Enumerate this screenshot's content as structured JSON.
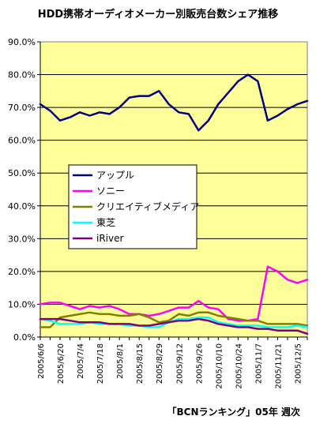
{
  "chart_data": {
    "type": "line",
    "title": "HDD携帯オーディオメーカー別販売台数シェア推移",
    "source": "「BCNランキング」05年 週次",
    "ylim": [
      0,
      90
    ],
    "yticks": [
      0,
      10,
      20,
      30,
      40,
      50,
      60,
      70,
      80,
      90
    ],
    "ytick_labels": [
      "0.0%",
      "10.0%",
      "20.0%",
      "30.0%",
      "40.0%",
      "50.0%",
      "60.0%",
      "70.0%",
      "80.0%",
      "90.0%"
    ],
    "grid": "horizontal",
    "plot_background": "#ffff99",
    "legend_position": "center-left",
    "x": [
      "2005/6/6",
      "2005/6/13",
      "2005/6/20",
      "2005/6/27",
      "2005/7/4",
      "2005/7/11",
      "2005/7/18",
      "2005/7/25",
      "2005/8/1",
      "2005/8/8",
      "2005/8/15",
      "2005/8/22",
      "2005/8/29",
      "2005/9/5",
      "2005/9/12",
      "2005/9/19",
      "2005/9/26",
      "2005/10/3",
      "2005/10/10",
      "2005/10/17",
      "2005/10/24",
      "2005/10/31",
      "2005/11/7",
      "2005/11/14",
      "2005/11/21",
      "2005/11/28",
      "2005/12/5",
      "2005/12/12"
    ],
    "x_tick_labels": [
      "2005/6/6",
      "2005/6/20",
      "2005/7/4",
      "2005/7/18",
      "2005/8/1",
      "2005/8/15",
      "2005/8/29",
      "2005/9/12",
      "2005/9/26",
      "2005/10/10",
      "2005/10/24",
      "2005/11/7",
      "2005/11/21",
      "2005/12/5"
    ],
    "series": [
      {
        "name": "アップル",
        "color": "#000080",
        "values": [
          71,
          69,
          66,
          67,
          68.5,
          67.5,
          68.5,
          68,
          70,
          73,
          73.5,
          73.5,
          75,
          71,
          68.5,
          68,
          63,
          66,
          71,
          74.5,
          78,
          80,
          78,
          66,
          67.5,
          69.5,
          71,
          72
        ]
      },
      {
        "name": "ソニー",
        "color": "#ff00ff",
        "values": [
          10,
          10.5,
          10.5,
          9.5,
          8.5,
          9.5,
          9,
          9.5,
          8.5,
          7,
          7,
          6.5,
          7,
          8,
          9,
          9,
          11,
          9,
          8.5,
          5.5,
          5,
          5,
          5.5,
          21.5,
          20,
          17.5,
          16.5,
          17.5
        ]
      },
      {
        "name": "クリエイティブメディア",
        "color": "#808000",
        "values": [
          3,
          3,
          6,
          6.5,
          7,
          7.5,
          7,
          7,
          6.5,
          6.5,
          7,
          6,
          4.5,
          5,
          7,
          6.5,
          7.5,
          7.5,
          6.5,
          6,
          5.5,
          5,
          5,
          4,
          4,
          4,
          4,
          3.5
        ]
      },
      {
        "name": "東芝",
        "color": "#00ffff",
        "values": [
          5.5,
          5,
          4,
          4,
          4,
          4.5,
          4,
          4,
          4,
          3.5,
          3.5,
          3,
          3,
          4.5,
          5.5,
          5.5,
          6,
          6,
          4.5,
          4,
          3.5,
          3.5,
          3.5,
          3,
          3,
          3,
          3.5,
          3
        ]
      },
      {
        "name": "iRiver",
        "color": "#800080",
        "values": [
          5.5,
          5.5,
          5.5,
          5,
          4.5,
          4.5,
          4.5,
          4,
          4,
          4,
          3.5,
          3.5,
          4,
          4.5,
          5,
          5,
          5.5,
          5,
          4,
          3.5,
          3,
          3,
          2.5,
          2.5,
          2,
          2,
          2,
          1
        ]
      }
    ]
  }
}
